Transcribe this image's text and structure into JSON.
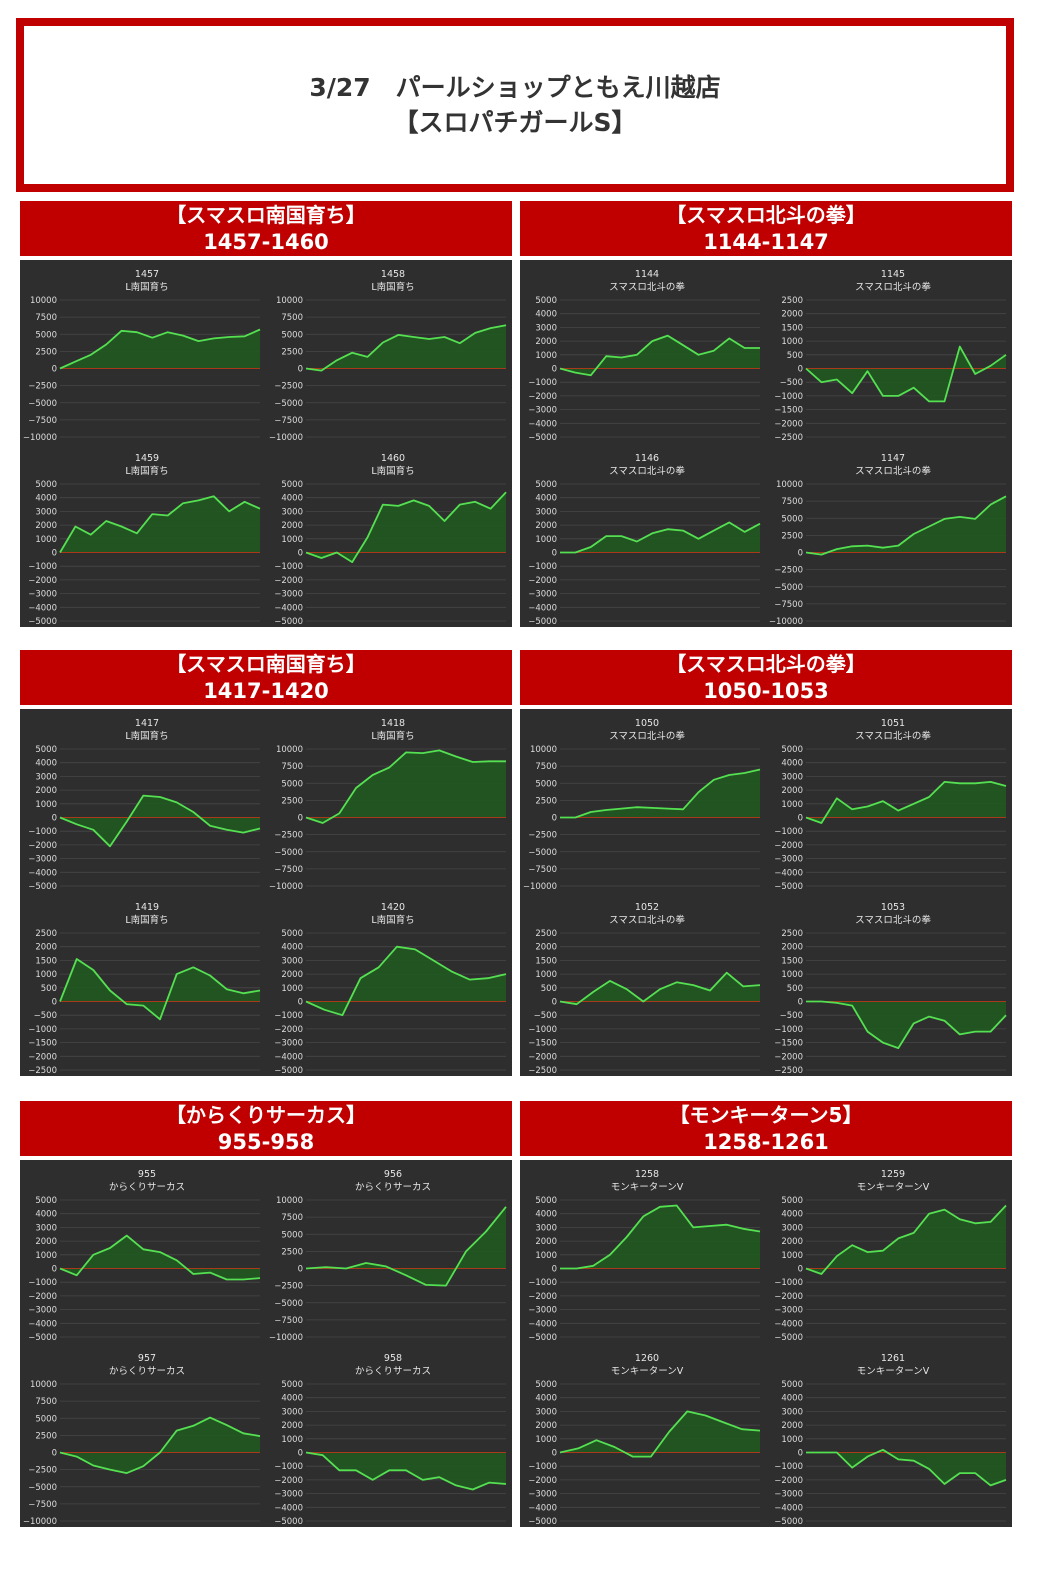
{
  "title": {
    "line1": "3/27　パールショップともえ川越店",
    "line2": "【スロパチガールS】"
  },
  "colors": {
    "accent": "#c00000",
    "panel_bg": "#2e2e2e",
    "line": "#55e052",
    "fill": "#1f5a1f",
    "zero": "#a83a1a"
  },
  "groups": [
    {
      "machine": "【スマスロ南国育ち】",
      "range": "1457-1460"
    },
    {
      "machine": "【スマスロ北斗の拳】",
      "range": "1144-1147"
    },
    {
      "machine": "【スマスロ南国育ち】",
      "range": "1417-1420"
    },
    {
      "machine": "【スマスロ北斗の拳】",
      "range": "1050-1053"
    },
    {
      "machine": "【からくりサーカス】",
      "range": "955-958"
    },
    {
      "machine": "【モンキーターン5】",
      "range": "1258-1261"
    }
  ],
  "chart_data": [
    {
      "type": "area",
      "number": "1457",
      "name": "L南国育ち",
      "ylim": [
        -10000,
        10000
      ],
      "step": 2500,
      "y": [
        0,
        1000,
        2000,
        3500,
        5500,
        5300,
        4500,
        5300,
        4800,
        4000,
        4400,
        4600,
        4700,
        5700
      ]
    },
    {
      "type": "area",
      "number": "1458",
      "name": "L南国育ち",
      "ylim": [
        -10000,
        10000
      ],
      "step": 2500,
      "y": [
        0,
        -300,
        1200,
        2300,
        1700,
        3800,
        4900,
        4600,
        4300,
        4600,
        3700,
        5200,
        5900,
        6300
      ]
    },
    {
      "type": "area",
      "number": "1459",
      "name": "L南国育ち",
      "ylim": [
        -5000,
        5000
      ],
      "step": 1000,
      "y": [
        0,
        1900,
        1300,
        2300,
        1900,
        1400,
        2800,
        2700,
        3600,
        3800,
        4100,
        3000,
        3700,
        3200
      ]
    },
    {
      "type": "area",
      "number": "1460",
      "name": "L南国育ち",
      "ylim": [
        -5000,
        5000
      ],
      "step": 1000,
      "y": [
        0,
        -400,
        0,
        -700,
        1100,
        3500,
        3400,
        3800,
        3400,
        2300,
        3500,
        3700,
        3200,
        4400
      ]
    },
    {
      "type": "area",
      "number": "1144",
      "name": "スマスロ北斗の拳",
      "ylim": [
        -5000,
        5000
      ],
      "step": 1000,
      "y": [
        0,
        -300,
        -500,
        900,
        800,
        1000,
        2000,
        2400,
        1700,
        1000,
        1300,
        2200,
        1500,
        1500
      ]
    },
    {
      "type": "area",
      "number": "1145",
      "name": "スマスロ北斗の拳",
      "ylim": [
        -2500,
        2500
      ],
      "step": 500,
      "y": [
        0,
        -500,
        -400,
        -900,
        -100,
        -1000,
        -1000,
        -700,
        -1200,
        -1200,
        800,
        -200,
        100,
        500
      ]
    },
    {
      "type": "area",
      "number": "1146",
      "name": "スマスロ北斗の拳",
      "ylim": [
        -5000,
        5000
      ],
      "step": 1000,
      "y": [
        0,
        0,
        400,
        1200,
        1200,
        800,
        1400,
        1700,
        1600,
        1000,
        1600,
        2200,
        1500,
        2100
      ]
    },
    {
      "type": "area",
      "number": "1147",
      "name": "スマスロ北斗の拳",
      "ylim": [
        -10000,
        10000
      ],
      "step": 2500,
      "y": [
        0,
        -300,
        500,
        900,
        1000,
        700,
        1000,
        2700,
        3800,
        4900,
        5200,
        4900,
        7000,
        8200
      ]
    },
    {
      "type": "area",
      "number": "1417",
      "name": "L南国育ち",
      "ylim": [
        -5000,
        5000
      ],
      "step": 1000,
      "y": [
        0,
        -500,
        -900,
        -2100,
        -300,
        1600,
        1500,
        1100,
        400,
        -600,
        -900,
        -1100,
        -800
      ]
    },
    {
      "type": "area",
      "number": "1418",
      "name": "L南国育ち",
      "ylim": [
        -10000,
        10000
      ],
      "step": 2500,
      "y": [
        0,
        -800,
        600,
        4300,
        6200,
        7300,
        9500,
        9400,
        9800,
        8900,
        8100,
        8200,
        8200
      ]
    },
    {
      "type": "area",
      "number": "1419",
      "name": "L南国育ち",
      "ylim": [
        -2500,
        2500
      ],
      "step": 500,
      "y": [
        0,
        1550,
        1150,
        400,
        -100,
        -150,
        -650,
        1000,
        1250,
        950,
        450,
        300,
        400
      ]
    },
    {
      "type": "area",
      "number": "1420",
      "name": "L南国育ち",
      "ylim": [
        -5000,
        5000
      ],
      "step": 1000,
      "y": [
        0,
        -600,
        -1000,
        1700,
        2500,
        4000,
        3800,
        3000,
        2200,
        1600,
        1700,
        2000
      ]
    },
    {
      "type": "area",
      "number": "1050",
      "name": "スマスロ北斗の拳",
      "ylim": [
        -10000,
        10000
      ],
      "step": 2500,
      "y": [
        0,
        0,
        800,
        1100,
        1300,
        1500,
        1400,
        1300,
        1200,
        3700,
        5500,
        6200,
        6500,
        7000
      ]
    },
    {
      "type": "area",
      "number": "1051",
      "name": "スマスロ北斗の拳",
      "ylim": [
        -5000,
        5000
      ],
      "step": 1000,
      "y": [
        0,
        -400,
        1400,
        600,
        800,
        1200,
        500,
        1000,
        1500,
        2600,
        2500,
        2500,
        2600,
        2300
      ]
    },
    {
      "type": "area",
      "number": "1052",
      "name": "スマスロ北斗の拳",
      "ylim": [
        -2500,
        2500
      ],
      "step": 500,
      "y": [
        0,
        -100,
        350,
        750,
        450,
        0,
        450,
        700,
        600,
        400,
        1050,
        550,
        600
      ]
    },
    {
      "type": "area",
      "number": "1053",
      "name": "スマスロ北斗の拳",
      "ylim": [
        -2500,
        2500
      ],
      "step": 500,
      "y": [
        0,
        0,
        -50,
        -150,
        -1100,
        -1500,
        -1700,
        -800,
        -550,
        -700,
        -1200,
        -1100,
        -1100,
        -500
      ]
    },
    {
      "type": "area",
      "number": "955",
      "name": "からくりサーカス",
      "ylim": [
        -5000,
        5000
      ],
      "step": 1000,
      "y": [
        0,
        -500,
        1000,
        1500,
        2400,
        1400,
        1200,
        600,
        -400,
        -300,
        -800,
        -800,
        -700
      ]
    },
    {
      "type": "area",
      "number": "956",
      "name": "からくりサーカス",
      "ylim": [
        -10000,
        10000
      ],
      "step": 2500,
      "y": [
        0,
        200,
        0,
        800,
        300,
        -1000,
        -2400,
        -2500,
        2500,
        5400,
        9000
      ]
    },
    {
      "type": "area",
      "number": "957",
      "name": "からくりサーカス",
      "ylim": [
        -10000,
        10000
      ],
      "step": 2500,
      "y": [
        0,
        -600,
        -1900,
        -2500,
        -3000,
        -2000,
        0,
        3200,
        3900,
        5100,
        4000,
        2800,
        2400
      ]
    },
    {
      "type": "area",
      "number": "958",
      "name": "からくりサーカス",
      "ylim": [
        -5000,
        5000
      ],
      "step": 1000,
      "y": [
        0,
        -200,
        -1300,
        -1300,
        -2000,
        -1300,
        -1300,
        -2000,
        -1800,
        -2400,
        -2700,
        -2200,
        -2300
      ]
    },
    {
      "type": "area",
      "number": "1258",
      "name": "モンキーターンV",
      "ylim": [
        -5000,
        5000
      ],
      "step": 1000,
      "y": [
        0,
        0,
        200,
        1000,
        2300,
        3800,
        4500,
        4600,
        3000,
        3100,
        3200,
        2900,
        2700
      ]
    },
    {
      "type": "area",
      "number": "1259",
      "name": "モンキーターンV",
      "ylim": [
        -5000,
        5000
      ],
      "step": 1000,
      "y": [
        0,
        -400,
        900,
        1700,
        1200,
        1300,
        2200,
        2600,
        4000,
        4300,
        3600,
        3300,
        3400,
        4600
      ]
    },
    {
      "type": "area",
      "number": "1260",
      "name": "モンキーターンV",
      "ylim": [
        -5000,
        5000
      ],
      "step": 1000,
      "y": [
        0,
        300,
        900,
        400,
        -300,
        -300,
        1500,
        3000,
        2700,
        2200,
        1700,
        1600
      ]
    },
    {
      "type": "area",
      "number": "1261",
      "name": "モンキーターンV",
      "ylim": [
        -5000,
        5000
      ],
      "step": 1000,
      "y": [
        0,
        0,
        0,
        -1100,
        -300,
        200,
        -500,
        -600,
        -1200,
        -2300,
        -1500,
        -1500,
        -2400,
        -2000
      ]
    }
  ]
}
